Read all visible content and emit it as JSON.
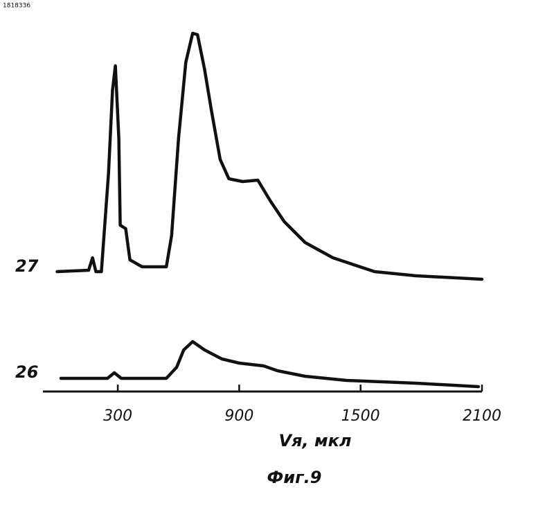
{
  "doc_id": "1818336",
  "chart_data": {
    "type": "line",
    "x_label": "Vя, мкл",
    "caption": "Фиг.9",
    "xlim": [
      -70,
      2100
    ],
    "xticks": [
      300,
      900,
      1500,
      2100
    ],
    "series": [
      {
        "name": "27",
        "color": "#111111",
        "x": [
          0,
          156,
          175,
          192,
          219,
          254,
          274,
          288,
          305,
          312,
          339,
          360,
          420,
          540,
          566,
          600,
          636,
          670,
          694,
          729,
          763,
          806,
          849,
          917,
          992,
          1054,
          1123,
          1226,
          1363,
          1569,
          1774,
          2100
        ],
        "values": [
          0,
          2,
          20,
          0,
          0,
          142,
          262,
          297,
          192,
          67,
          62,
          17,
          7,
          7,
          52,
          192,
          302,
          344,
          342,
          292,
          232,
          162,
          134,
          130,
          132,
          102,
          72,
          42,
          20,
          0,
          -6,
          -11
        ]
      },
      {
        "name": "26",
        "color": "#111111",
        "x": [
          19,
          249,
          283,
          317,
          540,
          591,
          626,
          670,
          729,
          814,
          900,
          1020,
          1089,
          1226,
          1431,
          1774,
          2083
        ],
        "values": [
          0,
          0,
          8,
          0,
          0,
          16,
          41,
          53,
          41,
          28,
          22,
          18,
          11,
          3,
          -3,
          -7,
          -12
        ]
      }
    ]
  }
}
